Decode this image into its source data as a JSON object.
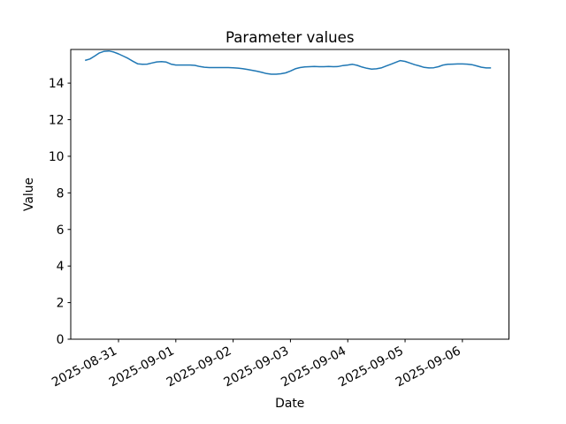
{
  "window": {
    "background": "#ffffff"
  },
  "chart_data": {
    "type": "line",
    "title": "Parameter values",
    "xlabel": "Date",
    "ylabel": "Value",
    "grid": false,
    "legend": "none",
    "line_color": "#1f77b4",
    "axis_color": "#000000",
    "xlim": [
      "2025-08-30T04:00",
      "2025-09-06T19:30"
    ],
    "ylim": [
      0,
      15.84
    ],
    "yticks": [
      {
        "label": "0",
        "v": 0
      },
      {
        "label": "2",
        "v": 2
      },
      {
        "label": "4",
        "v": 4
      },
      {
        "label": "6",
        "v": 6
      },
      {
        "label": "8",
        "v": 8
      },
      {
        "label": "10",
        "v": 10
      },
      {
        "label": "12",
        "v": 12
      },
      {
        "label": "14",
        "v": 14
      }
    ],
    "xticks": [
      {
        "label": "2025-08-31",
        "t": "2025-08-31T00:00"
      },
      {
        "label": "2025-09-01",
        "t": "2025-09-01T00:00"
      },
      {
        "label": "2025-09-02",
        "t": "2025-09-02T00:00"
      },
      {
        "label": "2025-09-03",
        "t": "2025-09-03T00:00"
      },
      {
        "label": "2025-09-04",
        "t": "2025-09-04T00:00"
      },
      {
        "label": "2025-09-05",
        "t": "2025-09-05T00:00"
      },
      {
        "label": "2025-09-06",
        "t": "2025-09-06T00:00"
      }
    ],
    "series": [
      {
        "color": "#1f77b4",
        "points": [
          [
            "2025-08-30T10:00",
            15.24
          ],
          [
            "2025-08-30T12:00",
            15.32
          ],
          [
            "2025-08-30T14:00",
            15.48
          ],
          [
            "2025-08-30T16:00",
            15.65
          ],
          [
            "2025-08-30T18:00",
            15.74
          ],
          [
            "2025-08-30T20:00",
            15.76
          ],
          [
            "2025-08-30T22:00",
            15.7
          ],
          [
            "2025-08-31T00:00",
            15.6
          ],
          [
            "2025-08-31T02:00",
            15.48
          ],
          [
            "2025-08-31T04:00",
            15.35
          ],
          [
            "2025-08-31T06:00",
            15.2
          ],
          [
            "2025-08-31T08:00",
            15.06
          ],
          [
            "2025-08-31T10:00",
            15.03
          ],
          [
            "2025-08-31T12:00",
            15.04
          ],
          [
            "2025-08-31T14:00",
            15.1
          ],
          [
            "2025-08-31T16:00",
            15.16
          ],
          [
            "2025-08-31T18:00",
            15.18
          ],
          [
            "2025-08-31T20:00",
            15.15
          ],
          [
            "2025-08-31T22:00",
            15.04
          ],
          [
            "2025-09-01T00:00",
            14.99
          ],
          [
            "2025-09-01T02:00",
            14.99
          ],
          [
            "2025-09-01T04:00",
            14.99
          ],
          [
            "2025-09-01T06:00",
            14.99
          ],
          [
            "2025-09-01T08:00",
            14.97
          ],
          [
            "2025-09-01T10:00",
            14.91
          ],
          [
            "2025-09-01T12:00",
            14.87
          ],
          [
            "2025-09-01T14:00",
            14.85
          ],
          [
            "2025-09-01T16:00",
            14.85
          ],
          [
            "2025-09-01T18:00",
            14.85
          ],
          [
            "2025-09-01T20:00",
            14.85
          ],
          [
            "2025-09-01T22:00",
            14.85
          ],
          [
            "2025-09-02T00:00",
            14.84
          ],
          [
            "2025-09-02T02:00",
            14.82
          ],
          [
            "2025-09-02T04:00",
            14.79
          ],
          [
            "2025-09-02T06:00",
            14.75
          ],
          [
            "2025-09-02T08:00",
            14.7
          ],
          [
            "2025-09-02T10:00",
            14.65
          ],
          [
            "2025-09-02T12:00",
            14.59
          ],
          [
            "2025-09-02T14:00",
            14.52
          ],
          [
            "2025-09-02T16:00",
            14.49
          ],
          [
            "2025-09-02T18:00",
            14.49
          ],
          [
            "2025-09-02T20:00",
            14.51
          ],
          [
            "2025-09-02T22:00",
            14.56
          ],
          [
            "2025-09-03T00:00",
            14.66
          ],
          [
            "2025-09-03T02:00",
            14.78
          ],
          [
            "2025-09-03T04:00",
            14.85
          ],
          [
            "2025-09-03T06:00",
            14.89
          ],
          [
            "2025-09-03T08:00",
            14.9
          ],
          [
            "2025-09-03T10:00",
            14.91
          ],
          [
            "2025-09-03T12:00",
            14.9
          ],
          [
            "2025-09-03T14:00",
            14.9
          ],
          [
            "2025-09-03T16:00",
            14.91
          ],
          [
            "2025-09-03T18:00",
            14.9
          ],
          [
            "2025-09-03T20:00",
            14.91
          ],
          [
            "2025-09-03T22:00",
            14.96
          ],
          [
            "2025-09-04T00:00",
            14.99
          ],
          [
            "2025-09-04T02:00",
            15.03
          ],
          [
            "2025-09-04T04:00",
            14.97
          ],
          [
            "2025-09-04T06:00",
            14.88
          ],
          [
            "2025-09-04T08:00",
            14.81
          ],
          [
            "2025-09-04T10:00",
            14.77
          ],
          [
            "2025-09-04T12:00",
            14.78
          ],
          [
            "2025-09-04T14:00",
            14.83
          ],
          [
            "2025-09-04T16:00",
            14.93
          ],
          [
            "2025-09-04T18:00",
            15.03
          ],
          [
            "2025-09-04T20:00",
            15.13
          ],
          [
            "2025-09-04T22:00",
            15.23
          ],
          [
            "2025-09-05T00:00",
            15.19
          ],
          [
            "2025-09-05T02:00",
            15.1
          ],
          [
            "2025-09-05T04:00",
            15.01
          ],
          [
            "2025-09-05T06:00",
            14.94
          ],
          [
            "2025-09-05T08:00",
            14.86
          ],
          [
            "2025-09-05T10:00",
            14.83
          ],
          [
            "2025-09-05T12:00",
            14.84
          ],
          [
            "2025-09-05T14:00",
            14.9
          ],
          [
            "2025-09-05T16:00",
            14.99
          ],
          [
            "2025-09-05T18:00",
            15.03
          ],
          [
            "2025-09-05T20:00",
            15.04
          ],
          [
            "2025-09-05T22:00",
            15.05
          ],
          [
            "2025-09-06T00:00",
            15.05
          ],
          [
            "2025-09-06T02:00",
            15.04
          ],
          [
            "2025-09-06T04:00",
            15.01
          ],
          [
            "2025-09-06T06:00",
            14.94
          ],
          [
            "2025-09-06T08:00",
            14.87
          ],
          [
            "2025-09-06T10:00",
            14.83
          ],
          [
            "2025-09-06T12:00",
            14.83
          ]
        ]
      }
    ]
  }
}
